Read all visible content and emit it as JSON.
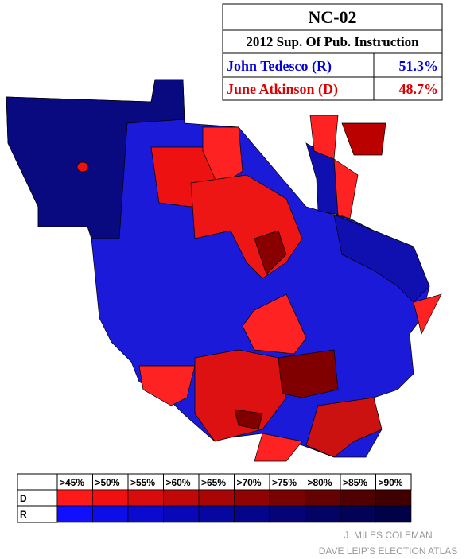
{
  "results": {
    "title": "NC-02",
    "subtitle": "2012 Sup. Of Pub. Instruction",
    "rows": [
      {
        "name": "John Tedesco (R)",
        "share": "51.3%"
      },
      {
        "name": "June Atkinson (D)",
        "share": "48.7%"
      }
    ]
  },
  "legend": {
    "thresholds": [
      ">45%",
      ">50%",
      ">55%",
      ">60%",
      ">65%",
      ">70%",
      ">75%",
      ">80%",
      ">85%",
      ">90%"
    ],
    "rows": [
      "D",
      "R"
    ]
  },
  "credits": [
    "J. MILES COLEMAN",
    "DAVE LEIP'S ELECTION ATLAS"
  ]
}
